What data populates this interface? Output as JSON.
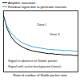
{
  "chart_data": {
    "type": "line",
    "x_label": "Ratio of number of Stable pocket ratio",
    "tick_labels": false,
    "xlim": [
      0,
      100
    ],
    "ylim": [
      0,
      100
    ],
    "x": [
      0,
      5,
      10,
      15,
      20,
      25,
      30,
      35,
      40,
      45,
      50,
      55,
      60,
      65,
      70,
      75,
      80,
      85,
      90,
      95,
      100
    ],
    "series": [
      {
        "name": "Amplifier saturation",
        "color": "#111111",
        "values": [
          92,
          70,
          58,
          50,
          45,
          41,
          38,
          36,
          34,
          33,
          32,
          31,
          30,
          30,
          29,
          29,
          28,
          28,
          28,
          27,
          27
        ]
      },
      {
        "name": "Residual signal due to generator reaction",
        "color": "#4aa8d8",
        "values": [
          88,
          74,
          64,
          57,
          52,
          48,
          45,
          43,
          41,
          40,
          39,
          38,
          37,
          37,
          36,
          36,
          35,
          35,
          35,
          34,
          34
        ]
      }
    ],
    "annotations": [
      {
        "text": "Zone I",
        "x": 45,
        "y": 78
      },
      {
        "text": "Zone II",
        "x": 62,
        "y": 62
      },
      {
        "text": "Signal in absence of Stable pocket",
        "x": 6,
        "y": 18
      },
      {
        "text": "Signal with active background (noise)",
        "x": 6,
        "y": 9
      }
    ]
  }
}
